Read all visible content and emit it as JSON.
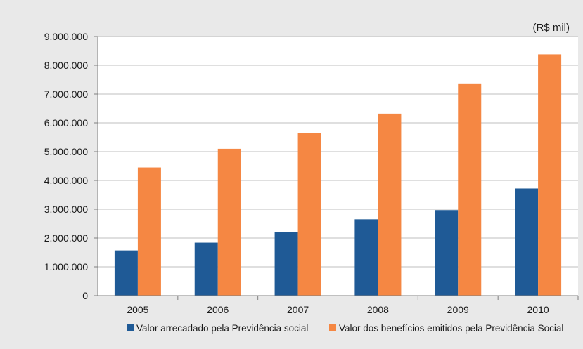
{
  "chart_data": {
    "type": "bar",
    "unit_label": "(R$ mil)",
    "categories": [
      "2005",
      "2006",
      "2007",
      "2008",
      "2009",
      "2010"
    ],
    "series": [
      {
        "name": "Valor arrecadado pela Previdência social",
        "color": "#1f5a96",
        "values": [
          1570000,
          1840000,
          2200000,
          2650000,
          2970000,
          3720000
        ]
      },
      {
        "name": "Valor dos benefícios emitidos pela Previdência Social",
        "color": "#f58743",
        "values": [
          4450000,
          5100000,
          5640000,
          6320000,
          7370000,
          8380000
        ]
      }
    ],
    "ylim": [
      0,
      9000000
    ],
    "yticks": [
      {
        "value": 0,
        "label": "0"
      },
      {
        "value": 1000000,
        "label": "1.000.000"
      },
      {
        "value": 2000000,
        "label": "2.000.000"
      },
      {
        "value": 3000000,
        "label": "3.000.000"
      },
      {
        "value": 4000000,
        "label": "4.000.000"
      },
      {
        "value": 5000000,
        "label": "5.000.000"
      },
      {
        "value": 6000000,
        "label": "6.000.000"
      },
      {
        "value": 7000000,
        "label": "7.000.000"
      },
      {
        "value": 8000000,
        "label": "8.000.000"
      },
      {
        "value": 9000000,
        "label": "9.000.000"
      }
    ],
    "grid": true,
    "legend": "bottom",
    "plot_background": "#ffffff",
    "page_background": "#e9e9e9"
  }
}
